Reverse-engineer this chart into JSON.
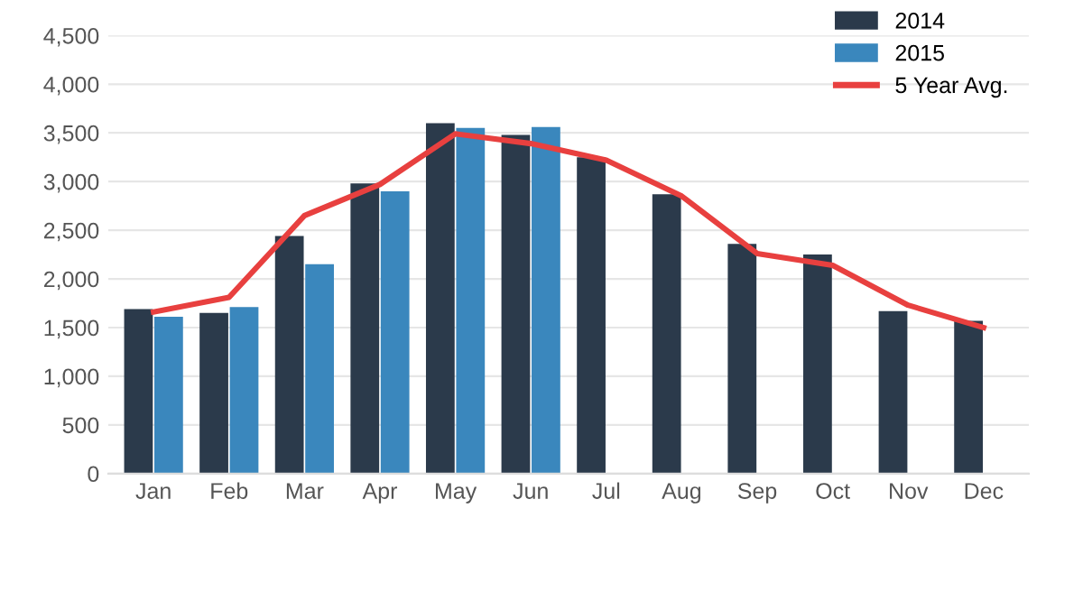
{
  "chart_data": {
    "type": "bar",
    "categories": [
      "Jan",
      "Feb",
      "Mar",
      "Apr",
      "May",
      "Jun",
      "Jul",
      "Aug",
      "Sep",
      "Oct",
      "Nov",
      "Dec"
    ],
    "series": [
      {
        "name": "2014",
        "color": "#2b3a4b",
        "values": [
          1690,
          1650,
          2440,
          2980,
          3600,
          3480,
          3250,
          2870,
          2360,
          2250,
          1670,
          1570
        ]
      },
      {
        "name": "2015",
        "color": "#3a87bd",
        "values": [
          1610,
          1710,
          2150,
          2900,
          3550,
          3560,
          null,
          null,
          null,
          null,
          null,
          null
        ]
      },
      {
        "name": "5 Year Avg.",
        "type": "line",
        "color": "#e8403f",
        "values": [
          1660,
          1810,
          2650,
          2970,
          3490,
          3390,
          3220,
          2850,
          2260,
          2140,
          1730,
          1500
        ]
      }
    ],
    "ylim": [
      0,
      4500
    ],
    "yticks": [
      {
        "value": 0,
        "label": "0"
      },
      {
        "value": 500,
        "label": "500"
      },
      {
        "value": 1000,
        "label": "1,000"
      },
      {
        "value": 1500,
        "label": "1,500"
      },
      {
        "value": 2000,
        "label": "2,000"
      },
      {
        "value": 2500,
        "label": "2,500"
      },
      {
        "value": 3000,
        "label": "3,000"
      },
      {
        "value": 3500,
        "label": "3,500"
      },
      {
        "value": 4000,
        "label": "4,000"
      },
      {
        "value": 4500,
        "label": "4,500"
      }
    ],
    "grid": "y",
    "legend": "top right",
    "marker": "none",
    "line_style": "solid"
  }
}
